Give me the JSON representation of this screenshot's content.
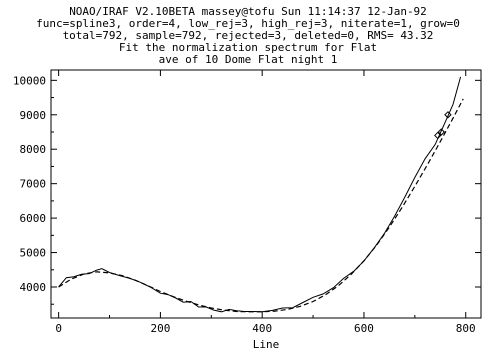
{
  "header": {
    "lines": [
      "NOAO/IRAF V2.10BETA massey@tofu Sun 11:14:37 12-Jan-92",
      "func=spline3, order=4, low_rej=3, high_rej=3, niterate=1, grow=0",
      "total=792, sample=792, rejected=3, deleted=0, RMS=  43.32",
      "Fit the normalization spectrum for Flat",
      "ave of 10 Dome Flat night 1"
    ]
  },
  "chart_data": {
    "type": "line",
    "title": "Fit the normalization spectrum for Flat",
    "subtitle": "ave of 10 Dome Flat night 1",
    "xlabel": "Line",
    "ylabel": "",
    "xlim": [
      -15,
      830
    ],
    "ylim": [
      3100,
      10300
    ],
    "x_ticks": [
      0,
      200,
      400,
      600,
      800
    ],
    "y_ticks": [
      4000,
      5000,
      6000,
      7000,
      8000,
      9000,
      10000
    ],
    "grid": false,
    "series": [
      {
        "role": "data",
        "x": [
          0,
          15,
          30,
          45,
          60,
          75,
          85,
          100,
          120,
          140,
          160,
          180,
          200,
          215,
          230,
          245,
          260,
          275,
          290,
          305,
          320,
          335,
          350,
          365,
          380,
          400,
          420,
          440,
          460,
          480,
          500,
          520,
          540,
          560,
          580,
          600,
          620,
          640,
          660,
          680,
          700,
          720,
          740,
          760,
          775,
          790
        ],
        "y": [
          4000,
          4270,
          4300,
          4370,
          4390,
          4490,
          4530,
          4420,
          4330,
          4250,
          4140,
          4000,
          3820,
          3780,
          3680,
          3560,
          3580,
          3420,
          3420,
          3330,
          3280,
          3350,
          3310,
          3290,
          3290,
          3280,
          3320,
          3390,
          3400,
          3550,
          3700,
          3800,
          3980,
          4250,
          4460,
          4760,
          5130,
          5550,
          6050,
          6600,
          7180,
          7720,
          8140,
          8800,
          9300,
          10100
        ]
      },
      {
        "role": "fit",
        "x": [
          0,
          25,
          50,
          75,
          100,
          125,
          150,
          175,
          200,
          225,
          250,
          275,
          300,
          325,
          350,
          375,
          400,
          425,
          450,
          475,
          500,
          525,
          550,
          575,
          600,
          625,
          650,
          675,
          700,
          725,
          750,
          775,
          795
        ],
        "y": [
          4000,
          4230,
          4380,
          4440,
          4410,
          4330,
          4200,
          4040,
          3870,
          3720,
          3590,
          3480,
          3390,
          3330,
          3290,
          3280,
          3280,
          3300,
          3350,
          3440,
          3580,
          3780,
          4040,
          4370,
          4760,
          5220,
          5740,
          6310,
          6920,
          7560,
          8220,
          8900,
          9460
        ]
      }
    ],
    "rejected_points": [
      {
        "x": 745,
        "y": 8400
      },
      {
        "x": 752,
        "y": 8500
      },
      {
        "x": 765,
        "y": 9000
      }
    ]
  }
}
